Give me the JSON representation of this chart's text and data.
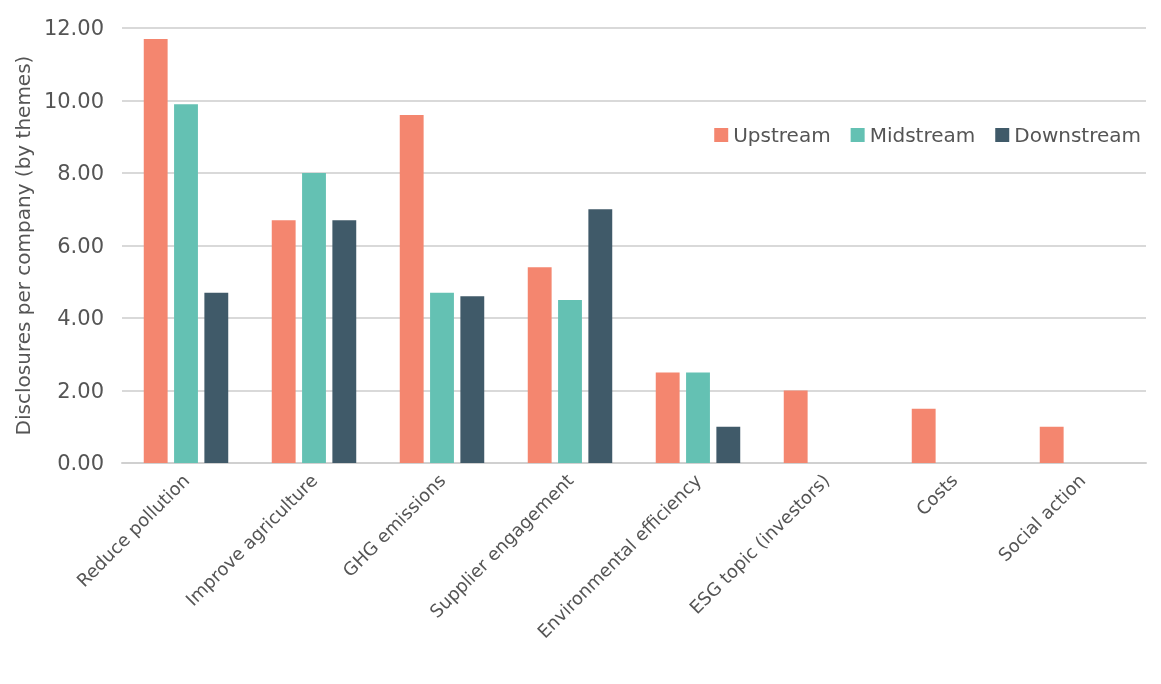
{
  "chart_data": {
    "type": "bar",
    "ylabel": "Disclosures per company (by themes)",
    "categories": [
      "Reduce pollution",
      "Improve agriculture",
      "GHG emissions",
      "Supplier engagement",
      "Environmental efficiency",
      "ESG topic (investors)",
      "Costs",
      "Social action"
    ],
    "series": [
      {
        "name": "Upstream",
        "color": "#f4866f",
        "values": [
          11.7,
          6.7,
          9.6,
          5.4,
          2.5,
          2.0,
          1.5,
          1.0
        ]
      },
      {
        "name": "Midstream",
        "color": "#64c1b3",
        "values": [
          9.9,
          8.0,
          4.7,
          4.5,
          2.5,
          0,
          0,
          0
        ]
      },
      {
        "name": "Downstream",
        "color": "#405a69",
        "values": [
          4.7,
          6.7,
          4.6,
          7.0,
          1.0,
          0,
          0,
          0
        ]
      }
    ],
    "ylim": [
      0,
      12
    ],
    "yticks": [
      {
        "value": 0,
        "label": "0.00"
      },
      {
        "value": 2,
        "label": "2.00"
      },
      {
        "value": 4,
        "label": "4.00"
      },
      {
        "value": 6,
        "label": "6.00"
      },
      {
        "value": 8,
        "label": "8.00"
      },
      {
        "value": 10,
        "label": "10.00"
      },
      {
        "value": 12,
        "label": "12.00"
      }
    ],
    "grid": "y",
    "legend": "top right"
  }
}
